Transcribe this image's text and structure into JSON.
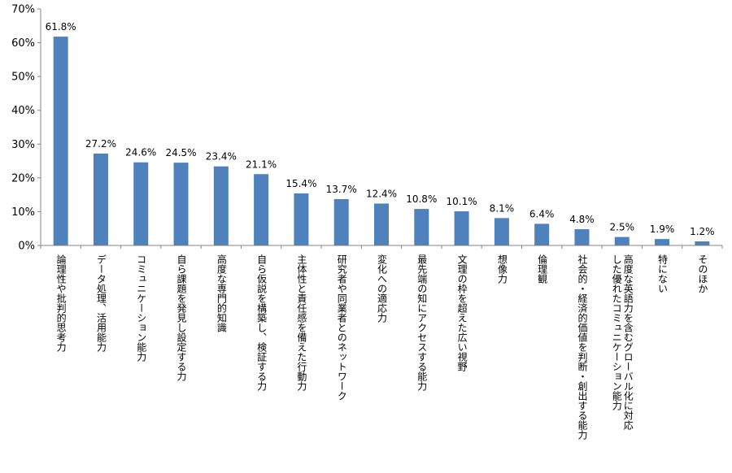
{
  "chart_data": {
    "type": "bar",
    "categories": [
      "論理性や批判的思考力",
      "データ処理、活用能力",
      "コミュニケーション能力",
      "自ら課題を発見し設定する力",
      "高度な専門的知識",
      "自ら仮説を構築し、検証する力",
      "主体性と責任感を備えた行動力",
      "研究者や同業者とのネットワーク",
      "変化への適応力",
      "最先端の知にアクセスする能力",
      "文理の枠を超えた広い視野",
      "想像力",
      "倫理観",
      "社会的・経済的価値を判断・創出する能力",
      "高度な英語力を含むグローバル化に対応した優れたコミュニケーション能力",
      "特にない",
      "そのほか"
    ],
    "category_lines": [
      [
        "論理性や批判的思考力"
      ],
      [
        "データ処理、活用能力"
      ],
      [
        "コミュニケーション能力"
      ],
      [
        "自ら課題を発見し設定する力"
      ],
      [
        "高度な専門的知識"
      ],
      [
        "自ら仮説を構築し、検証する力"
      ],
      [
        "主体性と責任感を備えた行動力"
      ],
      [
        "研究者や同業者とのネットワーク"
      ],
      [
        "変化への適応力"
      ],
      [
        "最先端の知にアクセスする能力"
      ],
      [
        "文理の枠を超えた広い視野"
      ],
      [
        "想像力"
      ],
      [
        "倫理観"
      ],
      [
        "社会的・経済的価値を判断・創出する能力"
      ],
      [
        "高度な英語力を含むグローバル化に対応",
        "した優れたコミュニケーション能力"
      ],
      [
        "特にない"
      ],
      [
        "そのほか"
      ]
    ],
    "values": [
      61.8,
      27.2,
      24.6,
      24.5,
      23.4,
      21.1,
      15.4,
      13.7,
      12.4,
      10.8,
      10.1,
      8.1,
      6.4,
      4.8,
      2.5,
      1.9,
      1.2
    ],
    "data_labels": [
      "61.8%",
      "27.2%",
      "24.6%",
      "24.5%",
      "23.4%",
      "21.1%",
      "15.4%",
      "13.7%",
      "12.4%",
      "10.8%",
      "10.1%",
      "8.1%",
      "6.4%",
      "4.8%",
      "2.5%",
      "1.9%",
      "1.2%"
    ],
    "y_ticks": [
      0,
      10,
      20,
      30,
      40,
      50,
      60,
      70
    ],
    "y_tick_labels": [
      "0%",
      "10%",
      "20%",
      "30%",
      "40%",
      "50%",
      "60%",
      "70%"
    ],
    "ylim": [
      0,
      70
    ],
    "title": "",
    "xlabel": "",
    "ylabel": "",
    "grid": false,
    "legend": "none",
    "bar_color": "#4f81bd"
  }
}
